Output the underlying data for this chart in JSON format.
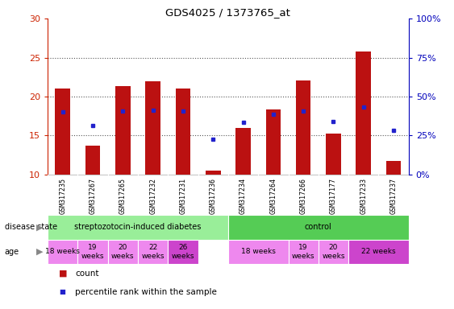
{
  "title": "GDS4025 / 1373765_at",
  "samples": [
    "GSM317235",
    "GSM317267",
    "GSM317265",
    "GSM317232",
    "GSM317231",
    "GSM317236",
    "GSM317234",
    "GSM317264",
    "GSM317266",
    "GSM317177",
    "GSM317233",
    "GSM317237"
  ],
  "counts": [
    21.0,
    13.7,
    21.3,
    22.0,
    21.0,
    10.5,
    16.0,
    18.3,
    22.1,
    15.3,
    25.8,
    11.8
  ],
  "percentile_vals": [
    18.0,
    16.3,
    18.1,
    18.2,
    18.1,
    14.5,
    16.7,
    17.7,
    18.1,
    16.8,
    18.7,
    15.7
  ],
  "ylim": [
    10,
    30
  ],
  "y2lim": [
    0,
    100
  ],
  "yticks": [
    10,
    15,
    20,
    25,
    30
  ],
  "y2ticks": [
    0,
    25,
    50,
    75,
    100
  ],
  "y2ticklabels": [
    "0%",
    "25%",
    "50%",
    "75%",
    "100%"
  ],
  "bar_color": "#bb1111",
  "dot_color": "#2222cc",
  "bar_bottom": 10,
  "disease_state_groups": [
    {
      "label": "streptozotocin-induced diabetes",
      "start": 0,
      "end": 6,
      "color": "#99ee99"
    },
    {
      "label": "control",
      "start": 6,
      "end": 12,
      "color": "#55cc55"
    }
  ],
  "age_groups": [
    {
      "label": "18 weeks",
      "start": 0,
      "end": 1,
      "color": "#ee88ee"
    },
    {
      "label": "19\nweeks",
      "start": 1,
      "end": 2,
      "color": "#ee88ee"
    },
    {
      "label": "20\nweeks",
      "start": 2,
      "end": 3,
      "color": "#ee88ee"
    },
    {
      "label": "22\nweeks",
      "start": 3,
      "end": 4,
      "color": "#ee88ee"
    },
    {
      "label": "26\nweeks",
      "start": 4,
      "end": 5,
      "color": "#cc44cc"
    },
    {
      "label": "18 weeks",
      "start": 6,
      "end": 8,
      "color": "#ee88ee"
    },
    {
      "label": "19\nweeks",
      "start": 8,
      "end": 9,
      "color": "#ee88ee"
    },
    {
      "label": "20\nweeks",
      "start": 9,
      "end": 10,
      "color": "#ee88ee"
    },
    {
      "label": "22 weeks",
      "start": 10,
      "end": 12,
      "color": "#cc44cc"
    }
  ],
  "legend_count_color": "#bb1111",
  "legend_dot_color": "#2222cc",
  "axis_left_color": "#cc2200",
  "axis_right_color": "#0000bb",
  "bg_color": "#ffffff",
  "grid_line_color": "#555555",
  "tick_bg_color": "#cccccc",
  "bar_width": 0.5
}
